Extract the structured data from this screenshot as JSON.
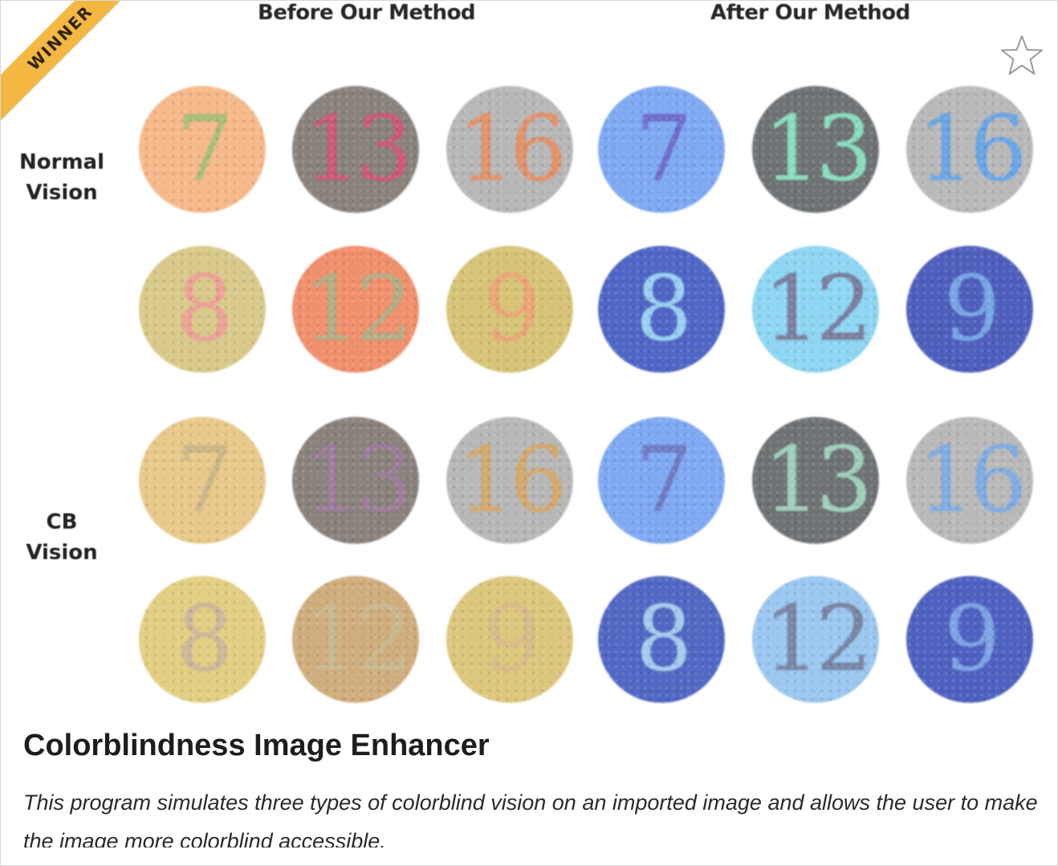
{
  "badge": {
    "label": "WINNER",
    "color": "#f3b742"
  },
  "favorite": {
    "icon": "star-outline-icon"
  },
  "columns": {
    "before": "Before Our Method",
    "after": "After Our Method"
  },
  "rows": {
    "normal": "Normal\nVision",
    "cb": "CB\nVision"
  },
  "plates": [
    {
      "num": "7",
      "bg": "#f6b98a",
      "fg": "#9bbf74"
    },
    {
      "num": "13",
      "bg": "#8a827c",
      "fg": "#d9527a"
    },
    {
      "num": "16",
      "bg": "#b8b8b8",
      "fg": "#e98a5a"
    },
    {
      "num": "7",
      "bg": "#7fa9f3",
      "fg": "#6b63c4"
    },
    {
      "num": "13",
      "bg": "#6f7375",
      "fg": "#8ff0cc"
    },
    {
      "num": "16",
      "bg": "#b9b9b9",
      "fg": "#5aa2ee"
    },
    {
      "num": "8",
      "bg": "#d9c98a",
      "fg": "#f09a98"
    },
    {
      "num": "12",
      "bg": "#f08f6c",
      "fg": "#a7b38b"
    },
    {
      "num": "9",
      "bg": "#d7c477",
      "fg": "#f0a077"
    },
    {
      "num": "8",
      "bg": "#4f66c6",
      "fg": "#a6e3f7"
    },
    {
      "num": "12",
      "bg": "#8ed6f3",
      "fg": "#77708e"
    },
    {
      "num": "9",
      "bg": "#4f5fbd",
      "fg": "#7fb3ec"
    },
    {
      "num": "7",
      "bg": "#e8c98a",
      "fg": "#c3b489"
    },
    {
      "num": "13",
      "bg": "#8a827c",
      "fg": "#a07ca2"
    },
    {
      "num": "16",
      "bg": "#b8b8b8",
      "fg": "#d9a55e"
    },
    {
      "num": "7",
      "bg": "#7fa9f3",
      "fg": "#6b73b8"
    },
    {
      "num": "13",
      "bg": "#6f7375",
      "fg": "#a9e0c8"
    },
    {
      "num": "16",
      "bg": "#b9b9b9",
      "fg": "#74a8ea"
    },
    {
      "num": "8",
      "bg": "#e3cf82",
      "fg": "#c8b3a0"
    },
    {
      "num": "12",
      "bg": "#d0ad7c",
      "fg": "#c9ba95"
    },
    {
      "num": "9",
      "bg": "#dcc77c",
      "fg": "#d8b98d"
    },
    {
      "num": "8",
      "bg": "#5168c4",
      "fg": "#b6ddf3"
    },
    {
      "num": "12",
      "bg": "#9bc7f0",
      "fg": "#737a96"
    },
    {
      "num": "9",
      "bg": "#4f61c0",
      "fg": "#86aeea"
    }
  ],
  "project": {
    "title": "Colorblindness Image Enhancer",
    "description": "This program simulates three types of colorblind vision on an imported image and allows the user to make the image more colorblind accessible."
  }
}
